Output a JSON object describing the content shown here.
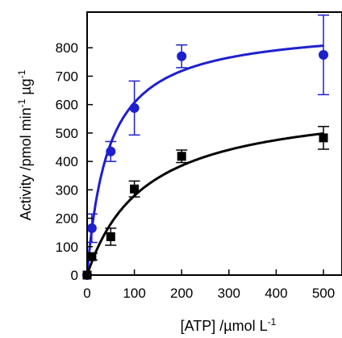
{
  "chart_data": {
    "type": "scatter",
    "xlabel": "[ATP] /µmol L",
    "xlabel_sup": "-1",
    "ylabel_parts": [
      "Activity /pmol min",
      "-1",
      " µg",
      "-1"
    ],
    "xlim": [
      0,
      500
    ],
    "ylim": [
      0,
      900
    ],
    "xticks": [
      0,
      100,
      200,
      300,
      400,
      500
    ],
    "yticks": [
      0,
      100,
      200,
      300,
      400,
      500,
      600,
      700,
      800
    ],
    "grid": false,
    "legend": "none",
    "series": [
      {
        "marker": "circle",
        "color": "#1f1fcf",
        "points": [
          {
            "x": 0,
            "y": 0,
            "err": 0
          },
          {
            "x": 10,
            "y": 165,
            "err": 50
          },
          {
            "x": 50,
            "y": 435,
            "err": 35
          },
          {
            "x": 100,
            "y": 588,
            "err": 95
          },
          {
            "x": 200,
            "y": 770,
            "err": 40
          },
          {
            "x": 500,
            "y": 775,
            "err": 140
          }
        ],
        "fit": {
          "model": "michaelis-menten",
          "vmax": 880,
          "km": 45
        }
      },
      {
        "marker": "square",
        "color": "#000000",
        "points": [
          {
            "x": 0,
            "y": 0,
            "err": 0
          },
          {
            "x": 10,
            "y": 65,
            "err": 12
          },
          {
            "x": 50,
            "y": 135,
            "err": 30
          },
          {
            "x": 100,
            "y": 303,
            "err": 28
          },
          {
            "x": 200,
            "y": 418,
            "err": 22
          },
          {
            "x": 500,
            "y": 483,
            "err": 40
          }
        ],
        "fit": {
          "model": "michaelis-menten",
          "vmax": 620,
          "km": 122
        }
      }
    ]
  }
}
